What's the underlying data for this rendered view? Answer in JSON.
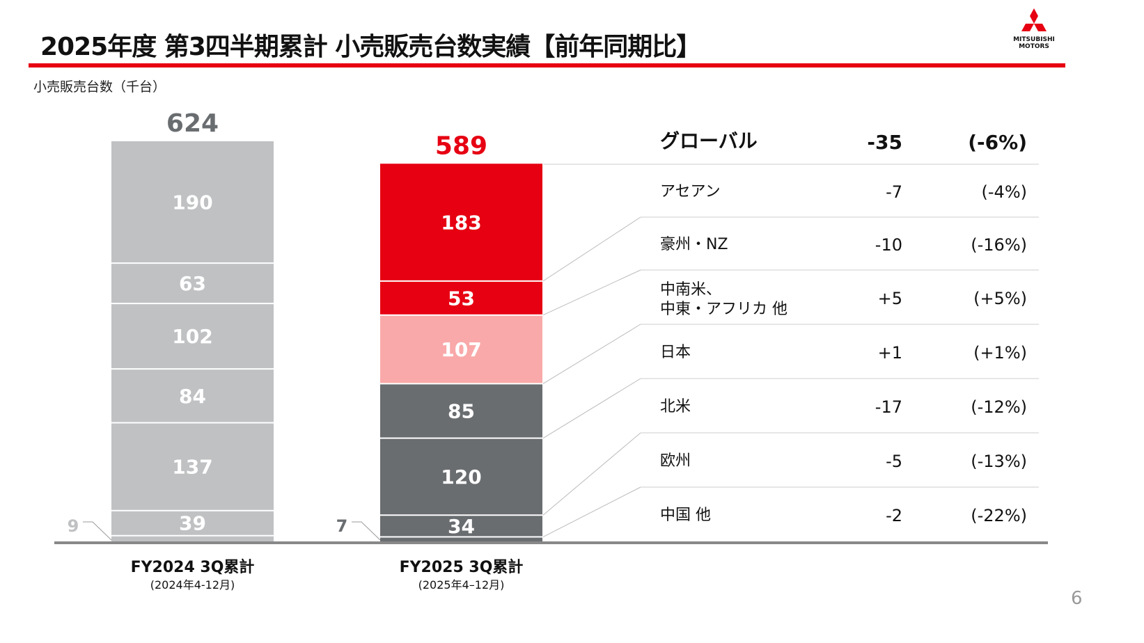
{
  "header": {
    "title": "2025年度 第3四半期累計 小売販売台数実績【前年同期比】",
    "unit_label": "小売販売台数（千台）",
    "logo_text": [
      "MITSUBISHI",
      "MOTORS"
    ],
    "page_number": "6"
  },
  "colors": {
    "accent": "#e60012",
    "fy2024": "#bfc1c3",
    "red": "#e60012",
    "pink": "#f9a9a9",
    "dark": "#6a6d70"
  },
  "chart_data": {
    "type": "bar",
    "stacked": true,
    "ylabel": "小売販売台数（千台）",
    "categories": [
      {
        "label": "FY2024 3Q累計",
        "sub": "(2024年4-12月)",
        "total": "624"
      },
      {
        "label": "FY2025 3Q累計",
        "sub": "(2025年4–12月)",
        "total": "589"
      }
    ],
    "series": [
      {
        "name": "中国 他",
        "values": [
          9,
          7
        ],
        "colors": [
          "fy2024",
          "dark"
        ]
      },
      {
        "name": "欧州",
        "values": [
          39,
          34
        ],
        "colors": [
          "fy2024",
          "dark"
        ]
      },
      {
        "name": "北米",
        "values": [
          137,
          120
        ],
        "colors": [
          "fy2024",
          "dark"
        ]
      },
      {
        "name": "日本",
        "values": [
          84,
          85
        ],
        "colors": [
          "fy2024",
          "dark"
        ]
      },
      {
        "name": "中南米、中東・アフリカ 他",
        "values": [
          102,
          107
        ],
        "colors": [
          "fy2024",
          "pink"
        ]
      },
      {
        "name": "豪州・NZ",
        "values": [
          63,
          53
        ],
        "colors": [
          "fy2024",
          "red"
        ]
      },
      {
        "name": "アセアン",
        "values": [
          190,
          183
        ],
        "colors": [
          "fy2024",
          "red"
        ]
      }
    ]
  },
  "table": {
    "global": {
      "label": "グローバル",
      "diff": "-35",
      "pct": "(-6%)"
    },
    "rows": [
      {
        "label": [
          "アセアン"
        ],
        "diff": "-7",
        "pct": "(-4%)"
      },
      {
        "label": [
          "豪州・NZ"
        ],
        "diff": "-10",
        "pct": "(-16%)"
      },
      {
        "label": [
          "中南米、",
          "中東・アフリカ 他"
        ],
        "diff": "+5",
        "pct": "(+5%)"
      },
      {
        "label": [
          "日本"
        ],
        "diff": "+1",
        "pct": "(+1%)"
      },
      {
        "label": [
          "北米"
        ],
        "diff": "-17",
        "pct": "(-12%)"
      },
      {
        "label": [
          "欧州"
        ],
        "diff": "-5",
        "pct": "(-13%)"
      },
      {
        "label": [
          "中国 他"
        ],
        "diff": "-2",
        "pct": "(-22%)"
      }
    ]
  }
}
